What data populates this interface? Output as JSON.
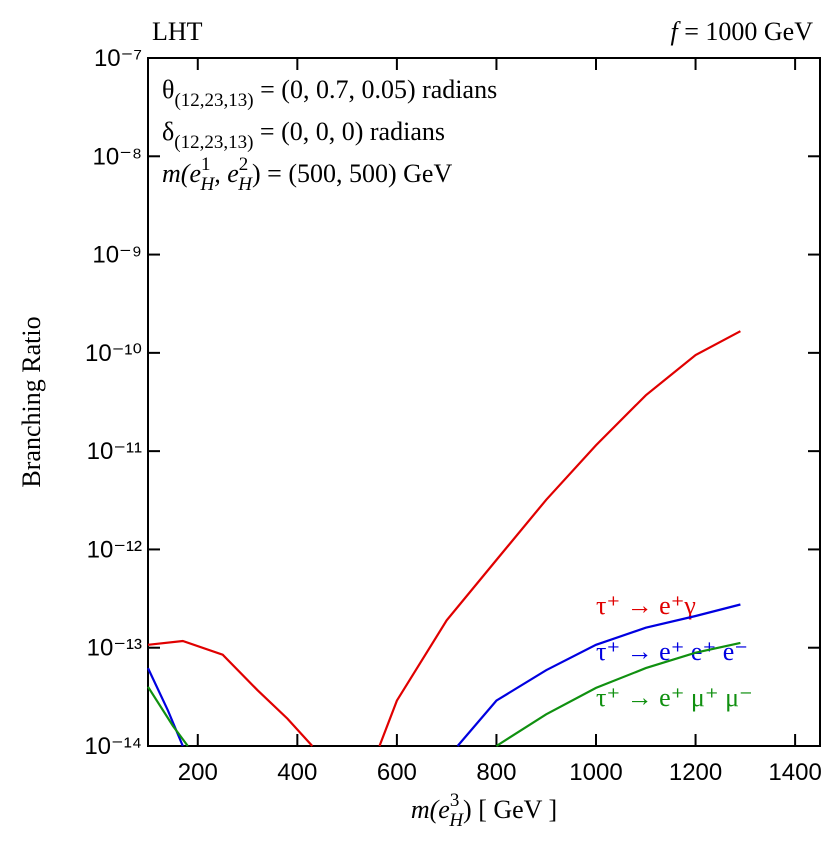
{
  "chart_data": {
    "type": "line",
    "title": "LHT",
    "subtitle": [
      "f",
      " = 1000 GeV"
    ],
    "annotations": [
      [
        "θ",
        "(12,23,13)",
        " = (0, 0.7, 0.05) radians"
      ],
      [
        "δ",
        "(12,23,13)",
        " = (0, 0, 0) radians"
      ],
      [
        "m",
        "(e",
        "1",
        "H",
        ", e",
        "2",
        "H",
        ") = (500, 500) GeV"
      ]
    ],
    "x_label": [
      "m",
      "(e",
      "3",
      "H",
      ") [ GeV ]"
    ],
    "y_label": "Branching Ratio",
    "log_y": true,
    "xlim": [
      100,
      1450
    ],
    "xticks": [
      200,
      400,
      600,
      800,
      1000,
      1200,
      1400
    ],
    "ylim": [
      1e-14,
      1e-07
    ],
    "yticks": [
      {
        "value": 1e-07,
        "label": "10⁻⁷"
      },
      {
        "value": 1e-08,
        "label": "10⁻⁸"
      },
      {
        "value": 1e-09,
        "label": "10⁻⁹"
      },
      {
        "value": 1e-10,
        "label": "10⁻¹⁰"
      },
      {
        "value": 1e-11,
        "label": "10⁻¹¹"
      },
      {
        "value": 1e-12,
        "label": "10⁻¹²"
      },
      {
        "value": 1e-13,
        "label": "10⁻¹³"
      },
      {
        "value": 1e-14,
        "label": "10⁻¹⁴"
      }
    ],
    "series": [
      {
        "name": "τ⁺ → e⁺γ",
        "color": "#e00000",
        "x": [
          100,
          170,
          250,
          320,
          380,
          430,
          null,
          565,
          600,
          700,
          800,
          900,
          1000,
          1100,
          1200,
          1290
        ],
        "values": [
          1.07e-13,
          1.17e-13,
          8.5e-14,
          3.7e-14,
          1.9e-14,
          1e-14,
          null,
          1e-14,
          2.9e-14,
          1.9e-13,
          7.8e-13,
          3.2e-12,
          1.15e-11,
          3.7e-11,
          9.5e-11,
          1.66e-10
        ]
      },
      {
        "name": "τ⁺ → e⁺ e⁺ e⁻",
        "color": "#0000e0",
        "x": [
          100,
          140,
          170,
          null,
          722,
          800,
          900,
          1000,
          1100,
          1200,
          1290
        ],
        "values": [
          6.2e-14,
          2.3e-14,
          1e-14,
          null,
          1e-14,
          2.9e-14,
          5.9e-14,
          1.07e-13,
          1.6e-13,
          2.1e-13,
          2.75e-13
        ]
      },
      {
        "name": "τ⁺ → e⁺ μ⁺ μ⁻",
        "color": "#109010",
        "x": [
          100,
          150,
          180,
          null,
          800,
          900,
          1000,
          1100,
          1200,
          1290
        ],
        "values": [
          4e-14,
          1.6e-14,
          1e-14,
          null,
          1e-14,
          2.1e-14,
          3.9e-14,
          6.2e-14,
          8.9e-14,
          1.12e-13
        ]
      }
    ]
  }
}
